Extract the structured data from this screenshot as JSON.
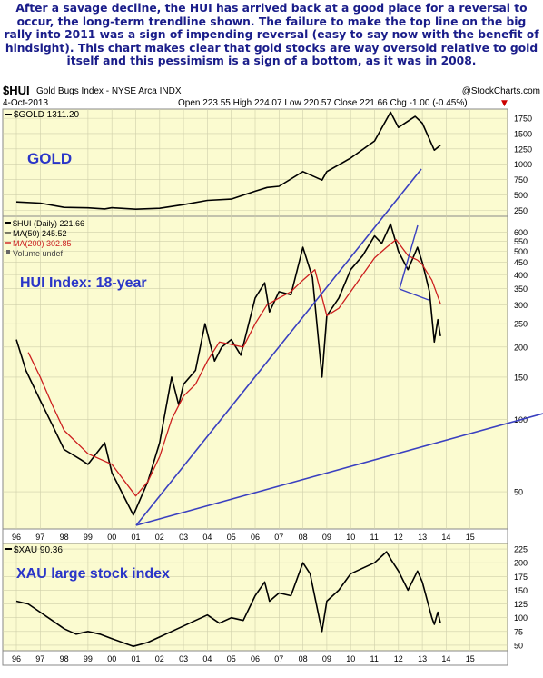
{
  "caption": "After a savage decline, the HUI has arrived back at a good place for a reversal to occur, the long-term trendline shown. The failure to make the top line on the big rally into 2011 was a sign of impending reversal (easy to say now with the benefit of hindsight). This chart makes clear that gold stocks are way oversold relative to gold itself and this pessimism is a sign of a bottom, as it was in 2008.",
  "header": {
    "symbol": "$HUI",
    "name": "Gold Bugs Index - NYSE Arca INDX",
    "source": "@StockCharts.com",
    "date": "4-Oct-2013",
    "quote": "Open 223.55  High 224.07  Low 220.57  Close 221.66  Chg -1.00 (-0.45%)",
    "quote_arrow": "▼"
  },
  "colors": {
    "panel_bg": "#fbfbd0",
    "annotation": "#2a35c8",
    "price": "#000000",
    "ma200": "#cc1f1f",
    "trendline": "#3a40c0",
    "grid": "#cfcfaa"
  },
  "chart_data": [
    {
      "type": "line",
      "panel": "gold",
      "legend": "$GOLD 1311.20",
      "annotation": "GOLD",
      "yticks": [
        250,
        500,
        750,
        1000,
        1250,
        1500,
        1750
      ],
      "ylim": [
        150,
        1900
      ],
      "series": [
        {
          "name": "$GOLD",
          "points": [
            [
              1996.0,
              385
            ],
            [
              1997.0,
              365
            ],
            [
              1998.0,
              295
            ],
            [
              1999.0,
              288
            ],
            [
              1999.7,
              270
            ],
            [
              2000.0,
              290
            ],
            [
              2001.0,
              265
            ],
            [
              2002.0,
              280
            ],
            [
              2003.0,
              340
            ],
            [
              2004.0,
              410
            ],
            [
              2005.0,
              430
            ],
            [
              2006.0,
              560
            ],
            [
              2006.5,
              620
            ],
            [
              2007.0,
              640
            ],
            [
              2008.0,
              880
            ],
            [
              2008.8,
              740
            ],
            [
              2009.0,
              880
            ],
            [
              2010.0,
              1100
            ],
            [
              2011.0,
              1380
            ],
            [
              2011.67,
              1850
            ],
            [
              2012.0,
              1600
            ],
            [
              2012.7,
              1780
            ],
            [
              2013.0,
              1670
            ],
            [
              2013.5,
              1230
            ],
            [
              2013.76,
              1311
            ]
          ]
        }
      ]
    },
    {
      "type": "line",
      "panel": "hui",
      "legend": [
        "$HUI (Daily) 221.66",
        "MA(50) 245.52",
        "MA(200) 302.85",
        "Volume undef"
      ],
      "annotation": "HUI Index: 18-year",
      "yticks": [
        50,
        100,
        150,
        200,
        250,
        300,
        350,
        400,
        450,
        500,
        550,
        600
      ],
      "ylim": [
        35,
        700
      ],
      "log": true,
      "series": [
        {
          "name": "$HUI",
          "points": [
            [
              1996.0,
              215
            ],
            [
              1996.4,
              160
            ],
            [
              1997.0,
              120
            ],
            [
              1997.5,
              95
            ],
            [
              1998.0,
              75
            ],
            [
              1998.7,
              68
            ],
            [
              1999.0,
              65
            ],
            [
              1999.7,
              80
            ],
            [
              2000.0,
              60
            ],
            [
              2000.9,
              40
            ],
            [
              2001.5,
              55
            ],
            [
              2002.0,
              80
            ],
            [
              2002.5,
              150
            ],
            [
              2002.8,
              115
            ],
            [
              2003.0,
              140
            ],
            [
              2003.5,
              160
            ],
            [
              2003.9,
              250
            ],
            [
              2004.3,
              175
            ],
            [
              2004.6,
              200
            ],
            [
              2005.0,
              215
            ],
            [
              2005.4,
              185
            ],
            [
              2006.0,
              320
            ],
            [
              2006.4,
              370
            ],
            [
              2006.6,
              280
            ],
            [
              2007.0,
              340
            ],
            [
              2007.5,
              330
            ],
            [
              2008.0,
              520
            ],
            [
              2008.4,
              390
            ],
            [
              2008.8,
              150
            ],
            [
              2009.0,
              270
            ],
            [
              2009.5,
              320
            ],
            [
              2010.0,
              420
            ],
            [
              2010.5,
              480
            ],
            [
              2011.0,
              580
            ],
            [
              2011.3,
              540
            ],
            [
              2011.67,
              650
            ],
            [
              2012.0,
              500
            ],
            [
              2012.4,
              420
            ],
            [
              2012.8,
              520
            ],
            [
              2013.0,
              450
            ],
            [
              2013.3,
              340
            ],
            [
              2013.5,
              210
            ],
            [
              2013.65,
              260
            ],
            [
              2013.76,
              222
            ]
          ]
        },
        {
          "name": "MA(200)",
          "points": [
            [
              1996.5,
              190
            ],
            [
              1997.0,
              150
            ],
            [
              1997.5,
              115
            ],
            [
              1998.0,
              90
            ],
            [
              1999.0,
              72
            ],
            [
              2000.0,
              65
            ],
            [
              2001.0,
              48
            ],
            [
              2001.5,
              55
            ],
            [
              2002.0,
              70
            ],
            [
              2002.5,
              100
            ],
            [
              2003.0,
              125
            ],
            [
              2003.5,
              140
            ],
            [
              2004.0,
              175
            ],
            [
              2004.5,
              210
            ],
            [
              2005.0,
              205
            ],
            [
              2005.5,
              200
            ],
            [
              2006.0,
              250
            ],
            [
              2006.5,
              300
            ],
            [
              2007.0,
              320
            ],
            [
              2007.5,
              340
            ],
            [
              2008.0,
              380
            ],
            [
              2008.5,
              420
            ],
            [
              2009.0,
              270
            ],
            [
              2009.5,
              290
            ],
            [
              2010.0,
              340
            ],
            [
              2010.5,
              400
            ],
            [
              2011.0,
              470
            ],
            [
              2011.5,
              520
            ],
            [
              2011.9,
              560
            ],
            [
              2012.4,
              480
            ],
            [
              2012.8,
              460
            ],
            [
              2013.0,
              440
            ],
            [
              2013.4,
              380
            ],
            [
              2013.76,
              303
            ]
          ]
        }
      ]
    },
    {
      "type": "line",
      "panel": "xau",
      "legend": "$XAU 90.36",
      "annotation": "XAU large stock index",
      "yticks": [
        50,
        75,
        100,
        125,
        150,
        175,
        200,
        225
      ],
      "ylim": [
        40,
        235
      ],
      "series": [
        {
          "name": "$XAU",
          "points": [
            [
              1996.0,
              130
            ],
            [
              1996.5,
              125
            ],
            [
              1997.0,
              110
            ],
            [
              1997.5,
              95
            ],
            [
              1998.0,
              80
            ],
            [
              1998.5,
              70
            ],
            [
              1999.0,
              75
            ],
            [
              1999.5,
              70
            ],
            [
              2000.0,
              62
            ],
            [
              2000.9,
              48
            ],
            [
              2001.5,
              55
            ],
            [
              2002.0,
              65
            ],
            [
              2002.5,
              75
            ],
            [
              2003.0,
              85
            ],
            [
              2003.5,
              95
            ],
            [
              2004.0,
              105
            ],
            [
              2004.5,
              90
            ],
            [
              2005.0,
              100
            ],
            [
              2005.5,
              95
            ],
            [
              2006.0,
              140
            ],
            [
              2006.4,
              165
            ],
            [
              2006.6,
              130
            ],
            [
              2007.0,
              145
            ],
            [
              2007.5,
              140
            ],
            [
              2008.0,
              200
            ],
            [
              2008.3,
              180
            ],
            [
              2008.8,
              75
            ],
            [
              2009.0,
              130
            ],
            [
              2009.5,
              150
            ],
            [
              2010.0,
              180
            ],
            [
              2010.5,
              190
            ],
            [
              2011.0,
              200
            ],
            [
              2011.5,
              220
            ],
            [
              2011.7,
              205
            ],
            [
              2012.0,
              185
            ],
            [
              2012.4,
              150
            ],
            [
              2012.8,
              185
            ],
            [
              2013.0,
              165
            ],
            [
              2013.4,
              100
            ],
            [
              2013.5,
              88
            ],
            [
              2013.65,
              110
            ],
            [
              2013.76,
              90
            ]
          ]
        }
      ]
    }
  ],
  "xaxis": {
    "ticks": [
      "96",
      "97",
      "98",
      "99",
      "00",
      "01",
      "02",
      "03",
      "04",
      "05",
      "06",
      "07",
      "08",
      "09",
      "10",
      "11",
      "12",
      "13",
      "14",
      "15"
    ],
    "start_year": 1996
  }
}
